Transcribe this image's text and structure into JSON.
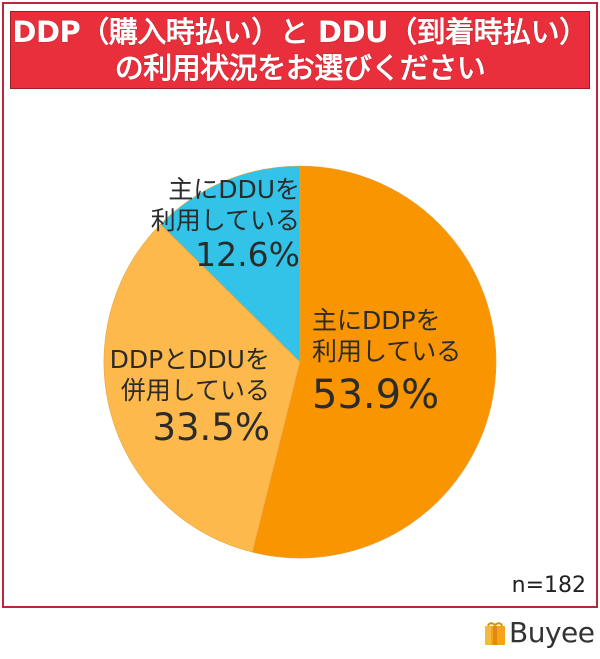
{
  "header": {
    "line1": "DDP（購入時払い）と DDU（到着時払い）",
    "line2": "の利用状況をお選びください"
  },
  "colors": {
    "header_bg": "#ea2f3c",
    "frame_border": "#b8283a",
    "ddp": "#f89500",
    "both": "#fdb94c",
    "ddu": "#33c3e8"
  },
  "labels": {
    "ddp": {
      "line1": "主にDDPを",
      "line2": "利用している",
      "pct": "53.9%"
    },
    "both": {
      "line1": "DDPとDDUを",
      "line2": "併用している",
      "pct": "33.5%"
    },
    "ddu": {
      "line1": "主にDDUを",
      "line2": "利用している",
      "pct": "12.6%"
    }
  },
  "sample": "n=182",
  "brand": {
    "name": "Buyee",
    "icon": "gift-box-icon"
  },
  "chart_data": {
    "type": "pie",
    "title": "DDP（購入時払い）と DDU（到着時払い）の利用状況をお選びください",
    "categories": [
      "主にDDPを利用している",
      "DDPとDDUを併用している",
      "主にDDUを利用している"
    ],
    "values": [
      53.9,
      33.5,
      12.6
    ],
    "unit": "%",
    "start_angle": "12 o'clock, clockwise",
    "colors": [
      "#f89500",
      "#fdb94c",
      "#33c3e8"
    ],
    "annotations": [
      "n=182"
    ],
    "legend": "none (inline labels)"
  }
}
